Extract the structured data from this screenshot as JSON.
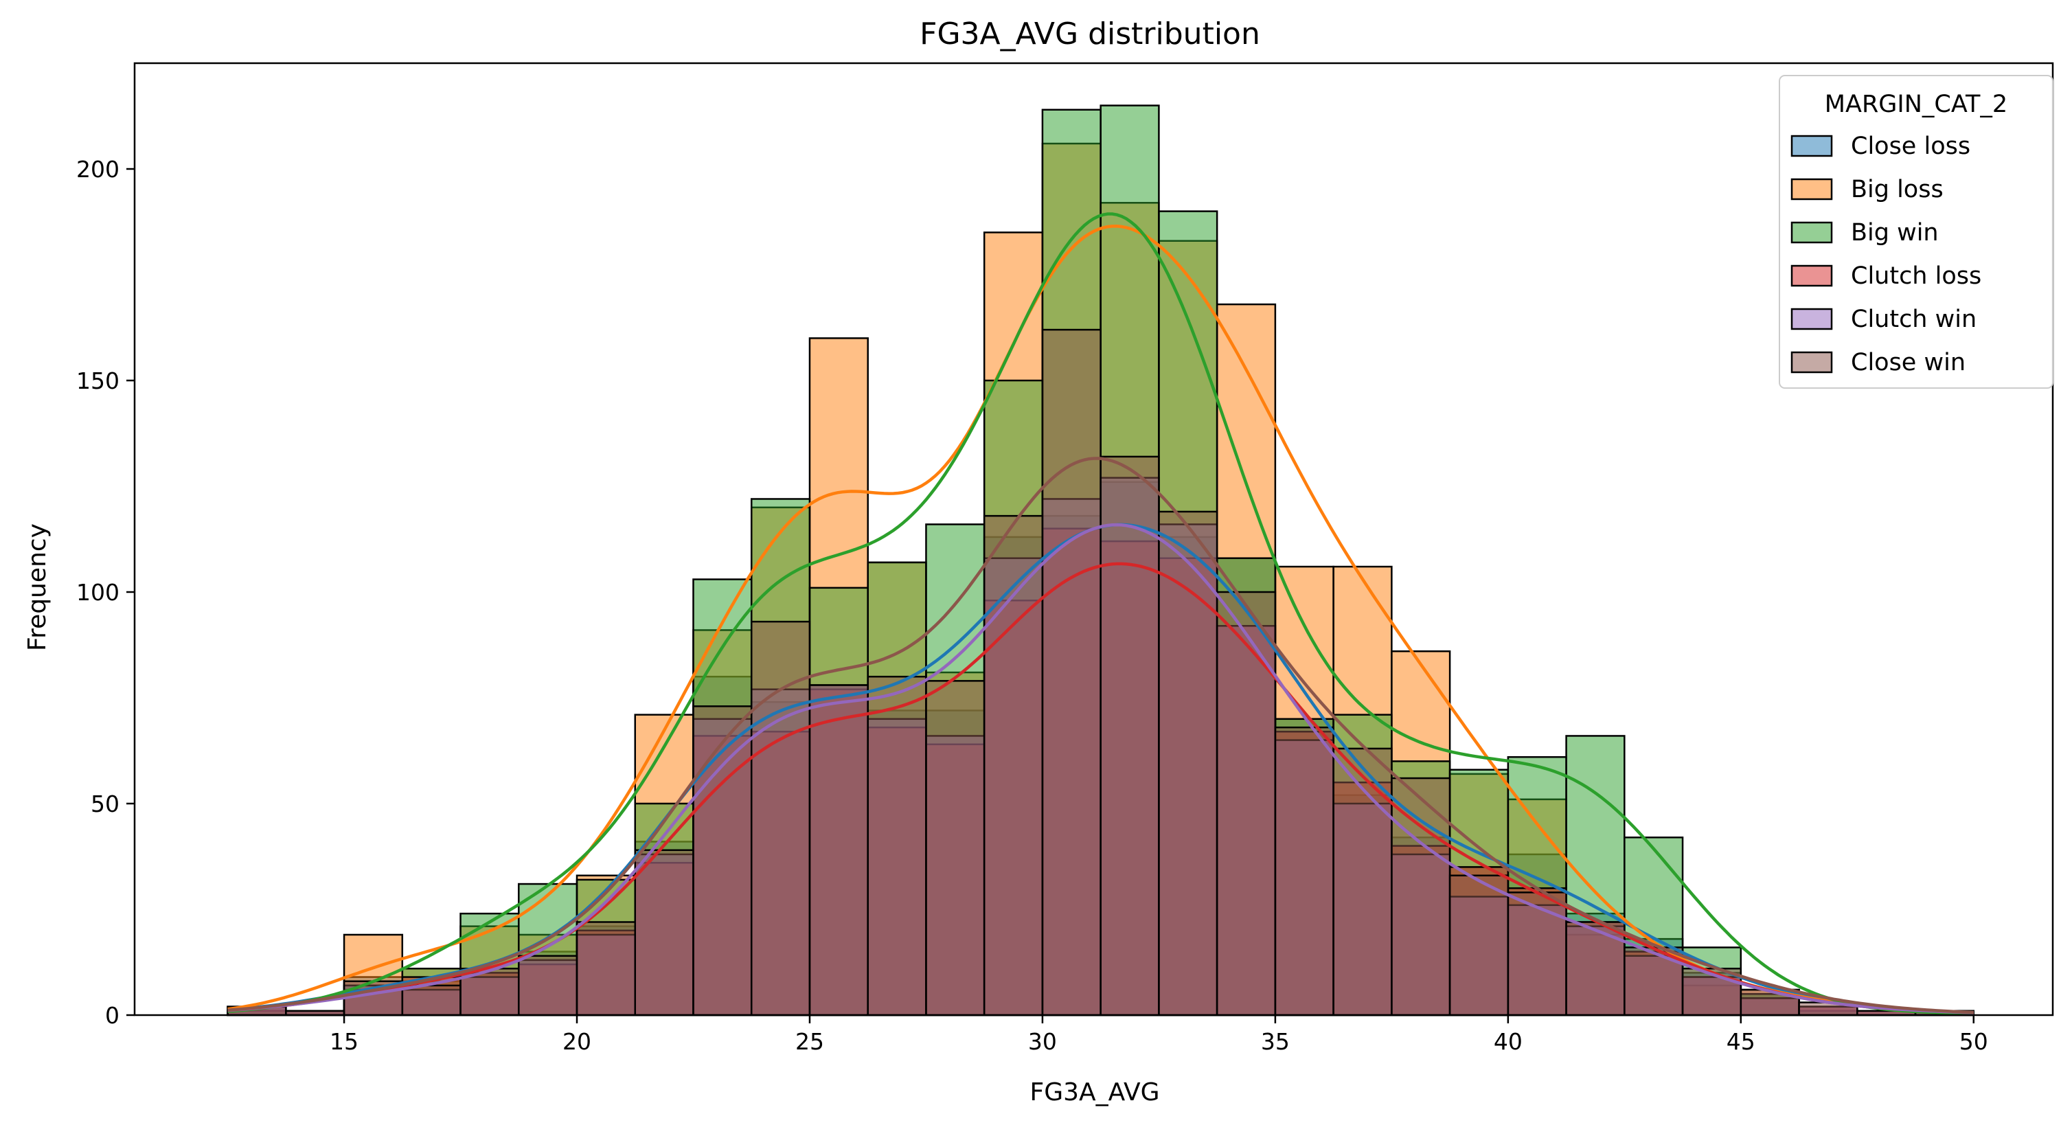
{
  "chart_data": {
    "type": "histogram",
    "title": "FG3A_AVG distribution",
    "xlabel": "FG3A_AVG",
    "ylabel": "Frequency",
    "xlim": [
      10.5,
      51.7
    ],
    "ylim": [
      0,
      225
    ],
    "xticks": [
      15,
      20,
      25,
      30,
      35,
      40,
      45,
      50
    ],
    "yticks": [
      0,
      50,
      100,
      150,
      200
    ],
    "bin_edges": [
      12.5,
      13.75,
      15.0,
      16.25,
      17.5,
      18.75,
      20.0,
      21.25,
      22.5,
      23.75,
      25.0,
      26.25,
      27.5,
      28.75,
      30.0,
      31.25,
      32.5,
      33.75,
      35.0,
      36.25,
      37.5,
      38.75,
      40.0,
      41.25,
      42.5,
      43.75,
      45.0,
      46.25,
      47.5,
      48.75,
      50.0
    ],
    "legend": {
      "title": "MARGIN_CAT_2",
      "position": "upper right"
    },
    "kde": true,
    "series": [
      {
        "name": "Close loss",
        "color": "#1f77b4",
        "values": [
          2,
          1,
          9,
          8,
          10,
          15,
          21,
          41,
          80,
          74,
          78,
          72,
          72,
          113,
          118,
          126,
          113,
          108,
          70,
          52,
          42,
          35,
          38,
          24,
          18,
          10,
          5,
          2,
          1,
          1
        ]
      },
      {
        "name": "Big loss",
        "color": "#ff7f0e",
        "values": [
          1,
          1,
          19,
          11,
          21,
          19,
          33,
          71,
          91,
          120,
          160,
          107,
          81,
          185,
          206,
          192,
          183,
          168,
          106,
          106,
          86,
          57,
          51,
          19,
          15,
          7,
          6,
          2,
          1,
          1
        ]
      },
      {
        "name": "Big win",
        "color": "#2ca02c",
        "values": [
          1,
          1,
          7,
          11,
          24,
          31,
          32,
          50,
          103,
          122,
          101,
          107,
          116,
          150,
          214,
          215,
          190,
          108,
          70,
          71,
          60,
          58,
          61,
          66,
          42,
          16,
          5,
          1,
          0,
          1
        ]
      },
      {
        "name": "Clutch loss",
        "color": "#d62728",
        "values": [
          2,
          1,
          6,
          9,
          10,
          12,
          20,
          36,
          66,
          67,
          77,
          68,
          64,
          98,
          115,
          112,
          108,
          92,
          67,
          55,
          40,
          35,
          30,
          22,
          15,
          9,
          4,
          2,
          1,
          1
        ]
      },
      {
        "name": "Clutch win",
        "color": "#9467bd",
        "values": [
          2,
          1,
          7,
          6,
          9,
          13,
          19,
          38,
          70,
          77,
          78,
          70,
          66,
          108,
          122,
          127,
          116,
          92,
          65,
          50,
          38,
          28,
          26,
          21,
          14,
          9,
          4,
          2,
          1,
          1
        ]
      },
      {
        "name": "Close win",
        "color": "#8c564b",
        "values": [
          2,
          1,
          8,
          7,
          11,
          14,
          22,
          39,
          73,
          93,
          78,
          80,
          79,
          118,
          162,
          132,
          119,
          100,
          68,
          63,
          56,
          33,
          29,
          22,
          16,
          11,
          6,
          3,
          1,
          1
        ]
      }
    ]
  }
}
